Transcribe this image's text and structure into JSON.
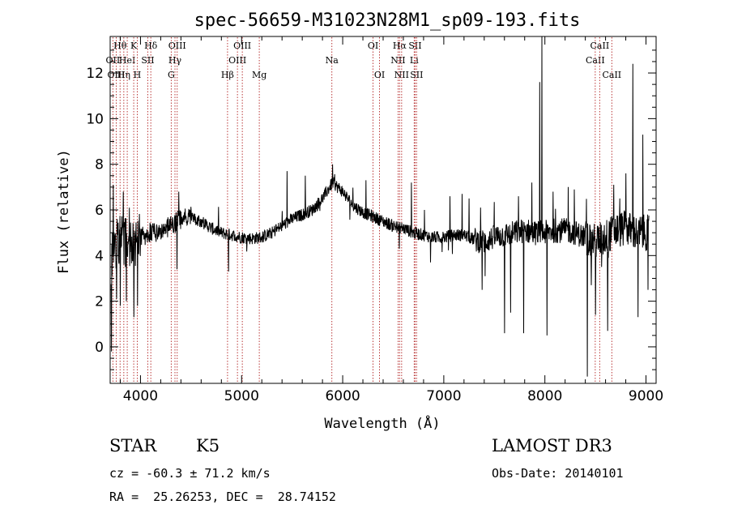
{
  "chart_data": {
    "type": "line",
    "title": "spec-56659-M31023N28M1_sp09-193.fits",
    "xlabel": "Wavelength (Å)",
    "ylabel": "Flux (relative)",
    "xlim": [
      3700,
      9100
    ],
    "ylim": [
      -1.6,
      13.6
    ],
    "x_ticks": [
      4000,
      5000,
      6000,
      7000,
      8000,
      9000
    ],
    "y_ticks": [
      0,
      2,
      4,
      6,
      8,
      10,
      12
    ],
    "grid": false,
    "line_color": "#000000",
    "marker_color": "#b22222",
    "spectrum_continuum": [
      [
        3700,
        3.6
      ],
      [
        3750,
        4.4
      ],
      [
        3800,
        4.7
      ],
      [
        3850,
        4.6
      ],
      [
        3900,
        4.5
      ],
      [
        3950,
        4.6
      ],
      [
        4000,
        4.8
      ],
      [
        4100,
        5.0
      ],
      [
        4200,
        5.1
      ],
      [
        4300,
        5.3
      ],
      [
        4400,
        5.6
      ],
      [
        4500,
        5.7
      ],
      [
        4600,
        5.5
      ],
      [
        4700,
        5.2
      ],
      [
        4800,
        5.0
      ],
      [
        4900,
        4.9
      ],
      [
        5000,
        4.8
      ],
      [
        5100,
        4.75
      ],
      [
        5200,
        4.8
      ],
      [
        5300,
        5.0
      ],
      [
        5400,
        5.3
      ],
      [
        5500,
        5.6
      ],
      [
        5600,
        5.8
      ],
      [
        5700,
        6.0
      ],
      [
        5800,
        6.5
      ],
      [
        5900,
        7.2
      ],
      [
        6000,
        6.8
      ],
      [
        6100,
        6.2
      ],
      [
        6200,
        5.9
      ],
      [
        6300,
        5.7
      ],
      [
        6400,
        5.5
      ],
      [
        6500,
        5.3
      ],
      [
        6600,
        5.2
      ],
      [
        6700,
        5.0
      ],
      [
        6800,
        4.9
      ],
      [
        6900,
        4.8
      ],
      [
        7000,
        4.8
      ],
      [
        7100,
        4.9
      ],
      [
        7200,
        4.9
      ],
      [
        7300,
        4.7
      ],
      [
        7400,
        4.6
      ],
      [
        7500,
        4.8
      ],
      [
        7600,
        4.9
      ],
      [
        7700,
        5.0
      ],
      [
        7800,
        5.1
      ],
      [
        7900,
        5.0
      ],
      [
        8000,
        5.0
      ],
      [
        8100,
        5.1
      ],
      [
        8200,
        5.1
      ],
      [
        8300,
        5.0
      ],
      [
        8400,
        4.8
      ],
      [
        8500,
        4.6
      ],
      [
        8600,
        4.8
      ],
      [
        8700,
        5.1
      ],
      [
        8800,
        5.2
      ],
      [
        8900,
        5.0
      ],
      [
        9000,
        5.0
      ],
      [
        9100,
        5.0
      ]
    ],
    "spectrum_features": [
      [
        3712,
        -0.2
      ],
      [
        3730,
        7.1
      ],
      [
        3765,
        2.1
      ],
      [
        3800,
        1.8
      ],
      [
        3830,
        6.8
      ],
      [
        3860,
        2.0
      ],
      [
        3890,
        6.1
      ],
      [
        3935,
        1.3
      ],
      [
        3970,
        1.8
      ],
      [
        4380,
        6.8
      ],
      [
        4360,
        3.4
      ],
      [
        4870,
        3.3
      ],
      [
        5450,
        7.7
      ],
      [
        5630,
        7.5
      ],
      [
        5900,
        8.0
      ],
      [
        6230,
        7.3
      ],
      [
        6560,
        4.3
      ],
      [
        6680,
        7.2
      ],
      [
        6810,
        6.0
      ],
      [
        6870,
        3.7
      ],
      [
        7060,
        6.6
      ],
      [
        7180,
        6.7
      ],
      [
        7250,
        6.5
      ],
      [
        7380,
        2.5
      ],
      [
        7410,
        3.1
      ],
      [
        7600,
        0.6
      ],
      [
        7660,
        1.5
      ],
      [
        7740,
        6.6
      ],
      [
        7790,
        0.6
      ],
      [
        7870,
        7.2
      ],
      [
        7950,
        11.6
      ],
      [
        7970,
        13.6
      ],
      [
        8020,
        0.5
      ],
      [
        8080,
        6.8
      ],
      [
        8230,
        7.0
      ],
      [
        8290,
        6.9
      ],
      [
        8420,
        -1.3
      ],
      [
        8460,
        2.7
      ],
      [
        8500,
        1.4
      ],
      [
        8560,
        3.5
      ],
      [
        8620,
        0.7
      ],
      [
        8680,
        7.1
      ],
      [
        8740,
        6.5
      ],
      [
        8800,
        7.6
      ],
      [
        8870,
        12.4
      ],
      [
        8920,
        1.3
      ],
      [
        8970,
        9.3
      ],
      [
        9020,
        2.5
      ]
    ],
    "lines": [
      {
        "wavelength": 3727,
        "label": "OII",
        "row": 1
      },
      {
        "wavelength": 3760,
        "label": "OIII",
        "row": 2
      },
      {
        "wavelength": 3798,
        "label": "Hθ",
        "row": 0
      },
      {
        "wavelength": 3835,
        "label": "Hη",
        "row": 2
      },
      {
        "wavelength": 3869,
        "label": "HeI",
        "row": 1
      },
      {
        "wavelength": 3933,
        "label": "K",
        "row": 0
      },
      {
        "wavelength": 3968,
        "label": "H",
        "row": 2
      },
      {
        "wavelength": 4072,
        "label": "SII",
        "row": 1
      },
      {
        "wavelength": 4102,
        "label": "Hδ",
        "row": 0
      },
      {
        "wavelength": 4304,
        "label": "G",
        "row": 2
      },
      {
        "wavelength": 4341,
        "label": "Hγ",
        "row": 1
      },
      {
        "wavelength": 4363,
        "label": "OIII",
        "row": 0
      },
      {
        "wavelength": 4861,
        "label": "Hβ",
        "row": 2
      },
      {
        "wavelength": 4959,
        "label": "OIII",
        "row": 1
      },
      {
        "wavelength": 5007,
        "label": "OIII",
        "row": 0
      },
      {
        "wavelength": 5175,
        "label": "Mg",
        "row": 2
      },
      {
        "wavelength": 5893,
        "label": "Na",
        "row": 1
      },
      {
        "wavelength": 6300,
        "label": "OI",
        "row": 0
      },
      {
        "wavelength": 6364,
        "label": "OI",
        "row": 2
      },
      {
        "wavelength": 6548,
        "label": "NII",
        "row": 1
      },
      {
        "wavelength": 6563,
        "label": "Hα",
        "row": 0
      },
      {
        "wavelength": 6583,
        "label": "NII",
        "row": 2
      },
      {
        "wavelength": 6707,
        "label": "Li",
        "row": 1
      },
      {
        "wavelength": 6716,
        "label": "SII",
        "row": 0
      },
      {
        "wavelength": 6731,
        "label": "SII",
        "row": 2
      },
      {
        "wavelength": 8498,
        "label": "CaII",
        "row": 1
      },
      {
        "wavelength": 8542,
        "label": "CaII",
        "row": 0
      },
      {
        "wavelength": 8662,
        "label": "CaII",
        "row": 2
      }
    ]
  },
  "info": {
    "object_class": "STAR",
    "subclass": "K5",
    "survey": "LAMOST DR3",
    "redshift_line": "cz = -60.3 ± 71.2 km/s",
    "obs_date": "Obs-Date: 20140101",
    "coords": "RA =  25.26253, DEC =  28.74152"
  }
}
